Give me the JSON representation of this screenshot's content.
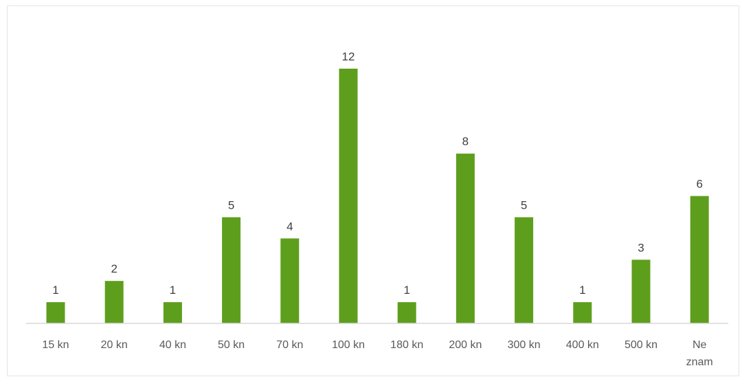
{
  "chart_data": {
    "type": "bar",
    "categories": [
      "15 kn",
      "20 kn",
      "40 kn",
      "50 kn",
      "70 kn",
      "100 kn",
      "180 kn",
      "200 kn",
      "300 kn",
      "400 kn",
      "500 kn",
      "Ne znam"
    ],
    "values": [
      1,
      2,
      1,
      5,
      4,
      12,
      1,
      8,
      5,
      1,
      3,
      6
    ],
    "title": "",
    "xlabel": "",
    "ylabel": "",
    "ylim": [
      0,
      12
    ],
    "grid": false,
    "legend": "none",
    "data_labels": true,
    "bar_color": "#5e9e1d"
  }
}
